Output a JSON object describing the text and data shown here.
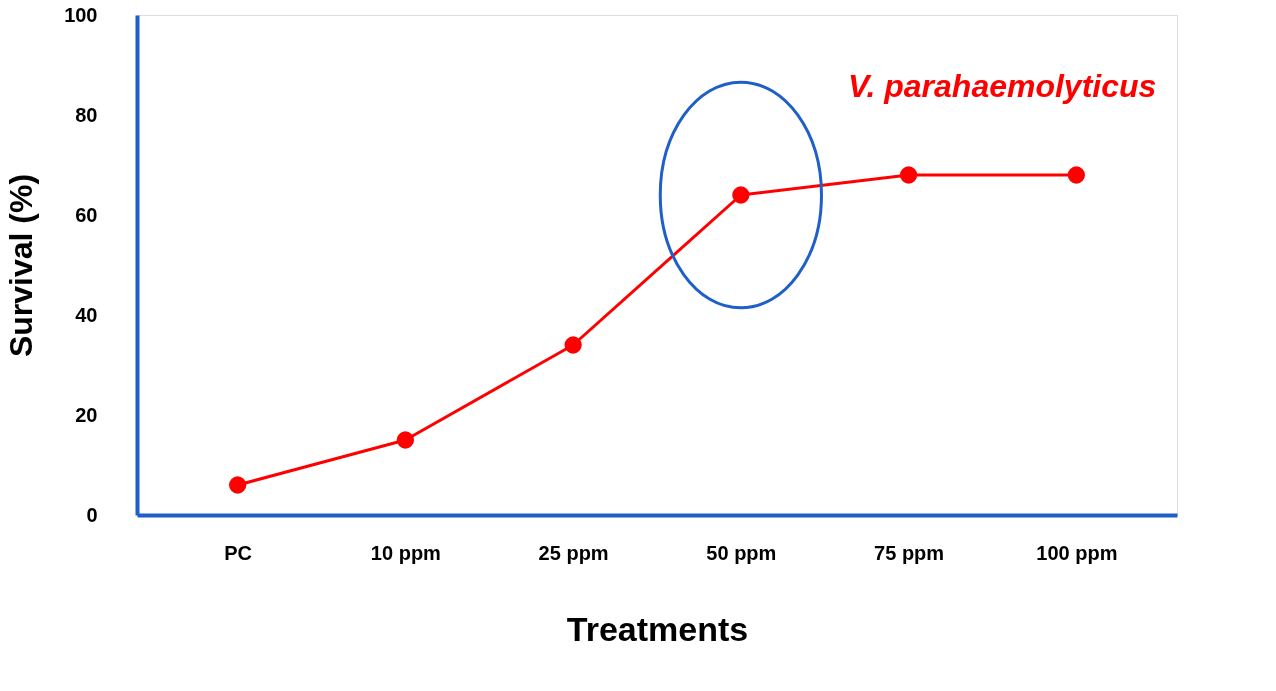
{
  "chart_data": {
    "type": "line",
    "xlabel": "Treatments",
    "ylabel": "Survival (%)",
    "categories": [
      "PC",
      "10 ppm",
      "25 ppm",
      "50 ppm",
      "75 ppm",
      "100 ppm"
    ],
    "series": [
      {
        "name": "V. parahaemolyticus",
        "color": "#ff0000",
        "values": [
          6,
          15,
          34,
          64,
          68,
          68
        ]
      }
    ],
    "ylim": [
      0,
      100
    ],
    "yticks": [
      0,
      20,
      40,
      60,
      80,
      100
    ],
    "grid": false,
    "marker": "circle",
    "line_style": "solid"
  }
}
